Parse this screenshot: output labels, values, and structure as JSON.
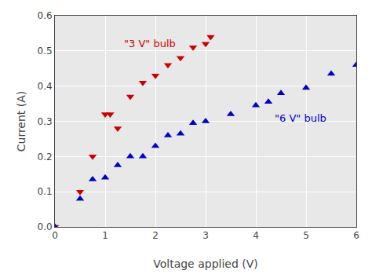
{
  "chart_data": {
    "type": "scatter",
    "x_label": "Voltage applied (V)",
    "y_label": "Current (A)",
    "series": [
      {
        "x": [
          0.0,
          0.5,
          0.75,
          1.0,
          1.1,
          1.25,
          1.5,
          1.75,
          2.0,
          2.25,
          2.5,
          2.75,
          3.0,
          3.1
        ],
        "values": [
          0.0,
          0.1,
          0.2,
          0.32,
          0.32,
          0.28,
          0.37,
          0.41,
          0.43,
          0.46,
          0.48,
          0.51,
          0.52,
          0.54
        ],
        "color": "#cc0000",
        "marker": "triangle-down"
      },
      {
        "x": [
          0.0,
          0.5,
          0.75,
          1.0,
          1.25,
          1.5,
          1.75,
          2.0,
          2.25,
          2.5,
          2.75,
          3.0,
          3.5,
          4.0,
          4.25,
          4.5,
          5.0,
          5.5,
          6.0
        ],
        "values": [
          0.0,
          0.08,
          0.135,
          0.14,
          0.175,
          0.2,
          0.2,
          0.23,
          0.26,
          0.265,
          0.295,
          0.3,
          0.32,
          0.345,
          0.355,
          0.38,
          0.395,
          0.435,
          0.46
        ],
        "color": "#0000cc",
        "marker": "triangle-up"
      }
    ],
    "annotations": [
      {
        "text": "\"3 V\" bulb",
        "x": 1.35,
        "y": 0.5,
        "color": "#cc0000"
      },
      {
        "text": "\"6 V\" bulb",
        "x": 4.35,
        "y": 0.31,
        "color": "#0000cc"
      }
    ],
    "xlim": [
      0,
      6
    ],
    "ylim": [
      0,
      0.6
    ],
    "xticks": [
      0,
      1,
      2,
      3,
      4,
      5,
      6
    ],
    "yticks": [
      {
        "value": 0,
        "label": "0.0"
      },
      0.1,
      0.2,
      0.3,
      0.4,
      0.5,
      0.6
    ],
    "grid": true
  }
}
